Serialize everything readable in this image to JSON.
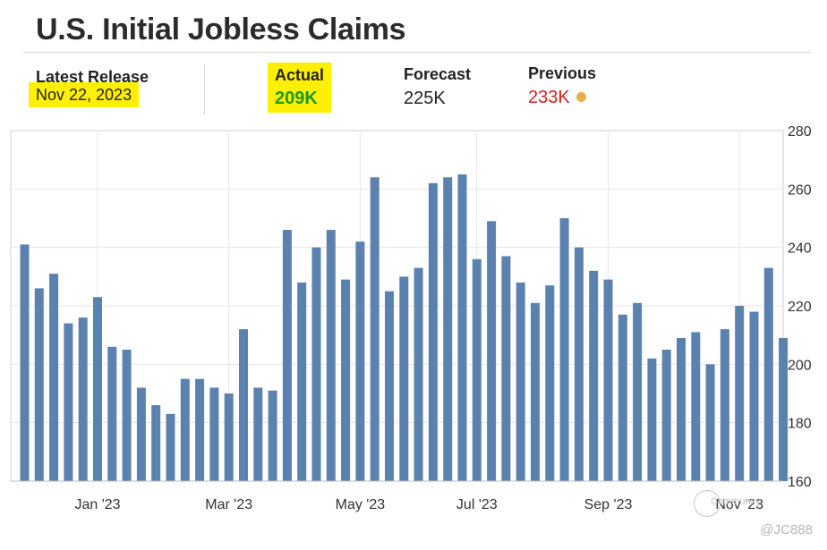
{
  "header": {
    "title": "U.S. Initial Jobless Claims"
  },
  "stats": {
    "latest_release": {
      "label": "Latest Release",
      "value": "Nov 22, 2023"
    },
    "actual": {
      "label": "Actual",
      "value": "209K",
      "color": "#1a9a1a"
    },
    "forecast": {
      "label": "Forecast",
      "value": "225K"
    },
    "previous": {
      "label": "Previous",
      "value": "233K",
      "color": "#d21f1f",
      "dot_color": "#e8b04a"
    }
  },
  "watermark": {
    "community": "Community",
    "handle": "@JC888"
  },
  "chart_data": {
    "type": "bar",
    "title": "",
    "xlabel": "",
    "ylabel": "",
    "ylim": [
      160,
      280
    ],
    "yticks": [
      160,
      180,
      200,
      220,
      240,
      260,
      280
    ],
    "xtick_labels": [
      "Jan '23",
      "Mar '23",
      "May '23",
      "Jul '23",
      "Sep '23",
      "Nov '23"
    ],
    "xtick_bar_index": [
      5,
      14,
      23,
      31,
      40,
      49
    ],
    "grid": true,
    "bar_color": "#5b82ae",
    "series": [
      {
        "values": [
          241,
          226,
          231,
          214,
          216,
          223,
          206,
          205,
          192,
          186,
          183,
          195,
          195,
          192,
          190,
          212,
          192,
          191,
          246,
          228,
          240,
          246,
          229,
          242,
          264,
          225,
          230,
          233,
          262,
          264,
          265,
          236,
          249,
          237,
          228,
          221,
          227,
          250,
          240,
          232,
          229,
          217,
          221,
          202,
          205,
          209,
          211,
          200,
          212,
          220,
          218,
          233,
          209
        ]
      }
    ]
  }
}
